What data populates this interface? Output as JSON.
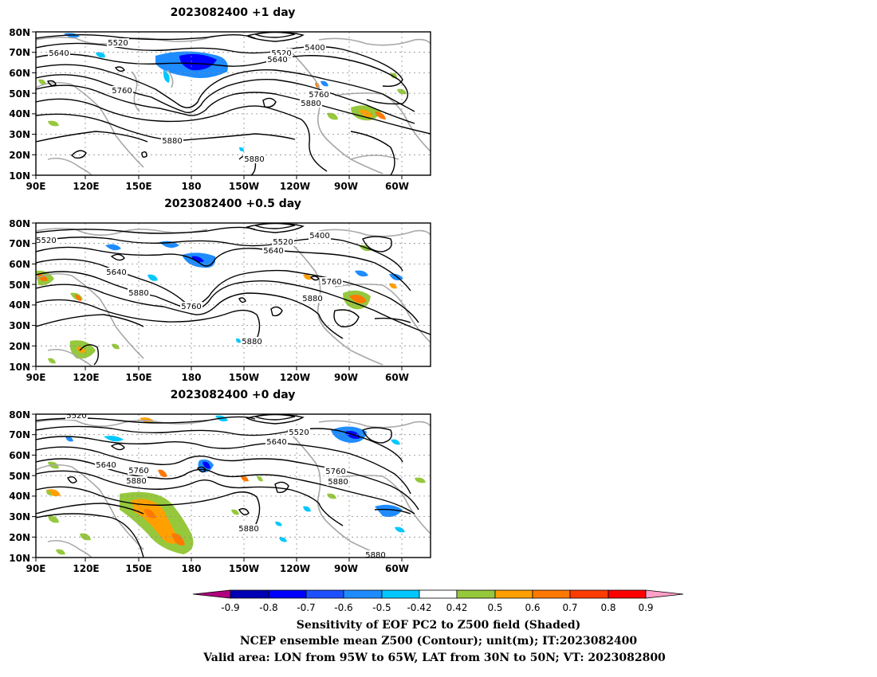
{
  "panels": [
    {
      "title": "2023082400  +1 day",
      "contour_labels": [
        "5520",
        "5640",
        "5400",
        "5520",
        "5640",
        "5760",
        "5760",
        "5880",
        "5880",
        "5880"
      ]
    },
    {
      "title": "2023082400  +0.5 day",
      "contour_labels": [
        "5520",
        "5520",
        "5400",
        "5640",
        "5640",
        "5760",
        "5880",
        "5760",
        "5880",
        "5880"
      ]
    },
    {
      "title": "2023082400  +0 day",
      "contour_labels": [
        "5520",
        "5520",
        "5640",
        "5640",
        "5760",
        "5880",
        "5760",
        "5880",
        "5880",
        "5880"
      ]
    }
  ],
  "axes": {
    "lat_labels": [
      "80N",
      "70N",
      "60N",
      "50N",
      "40N",
      "30N",
      "20N",
      "10N"
    ],
    "lon_labels": [
      "90E",
      "120E",
      "150E",
      "180",
      "150W",
      "120W",
      "90W",
      "60W"
    ]
  },
  "colorbar": {
    "tick_labels": [
      "-0.9",
      "-0.8",
      "-0.7",
      "-0.6",
      "-0.5",
      "-0.42",
      "0.42",
      "0.5",
      "0.6",
      "0.7",
      "0.8",
      "0.9"
    ],
    "colors": [
      "#b0007e",
      "#0000b4",
      "#0000ff",
      "#1e50ff",
      "#1e8cff",
      "#00c8ff",
      "#ffffff",
      "#96c83c",
      "#ffa000",
      "#ff7800",
      "#ff3c00",
      "#ff0000",
      "#ffa0c8"
    ]
  },
  "caption": {
    "line1": "Sensitivity of EOF PC2 to Z500 field (Shaded)",
    "line2": "NCEP ensemble mean Z500 (Contour); unit(m); IT:2023082400",
    "line3": "Valid area: LON from 95W to 65W, LAT from 30N to 50N; VT: 2023082800"
  },
  "colors": {
    "contour": "#000000",
    "coast": "#a8a8a8",
    "grid": "#8c8c8c",
    "neg_strong": "#0000ff",
    "neg": "#1e8cff",
    "neg_weak": "#00c8ff",
    "pos_weak": "#96c83c",
    "pos": "#ffa000",
    "pos_strong": "#ff7800"
  }
}
